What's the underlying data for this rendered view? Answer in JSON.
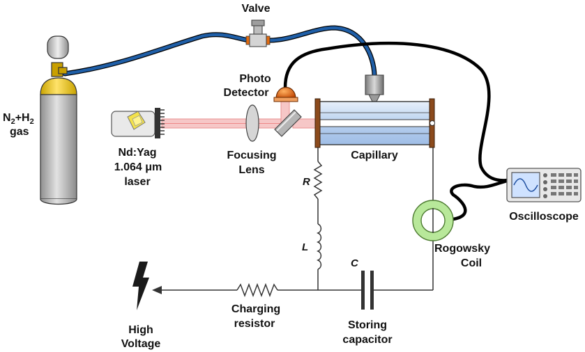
{
  "labels": {
    "valve": "Valve",
    "gas_n2": "N",
    "gas_n2_sub": "2",
    "gas_plus_h": "+H",
    "gas_h2_sub": "2",
    "gas_word": "gas",
    "photo_detector_line1": "Photo",
    "photo_detector_line2": "Detector",
    "laser_line1": "Nd:Yag",
    "laser_line2": "1.064 μm",
    "laser_line3": "laser",
    "focusing_lens_line1": "Focusing",
    "focusing_lens_line2": "Lens",
    "capillary": "Capillary",
    "resistor_symbol": "R",
    "inductor_symbol": "L",
    "capacitor_symbol": "C",
    "oscilloscope": "Oscilloscope",
    "rogowsky_line1": "Rogowsky",
    "rogowsky_line2": "Coil",
    "charging_line1": "Charging",
    "charging_line2": "resistor",
    "storing_line1": "Storing",
    "storing_line2": "capacitor",
    "hv_line1": "High",
    "hv_line2": "Voltage"
  },
  "colors": {
    "gas_tube": "#1f5fa8",
    "signal_cable": "#000000",
    "laser_beam": "#f2a7a7",
    "capillary_fill": "#c9dcf3",
    "electrode": "#8b4a1c",
    "cylinder_body": "#b4b4b4",
    "cylinder_top": "#f5d23a",
    "rogowsky": "#b8e89a",
    "detector": "#d65a00",
    "screen": "#cfe2ff"
  }
}
